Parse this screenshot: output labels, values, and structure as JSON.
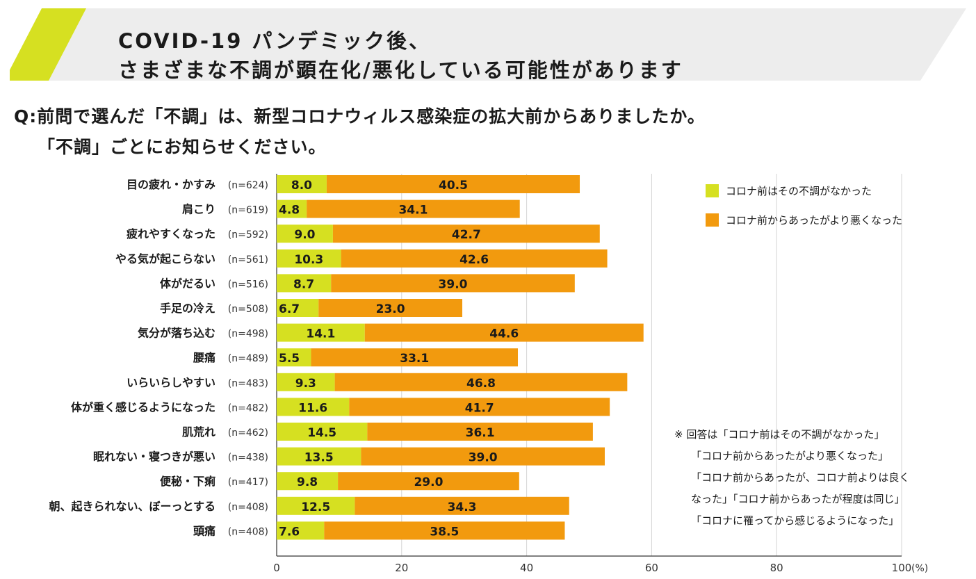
{
  "banner": {
    "title_line1": "COVID-19 パンデミック後、",
    "title_line2": "さまざまな不調が顕在化/悪化している可能性があります",
    "accent_color": "#d6e021",
    "background_color": "#ededed"
  },
  "question": {
    "line1": "Q:前問で選んだ「不調」は、新型コロナウィルス感染症の拡大前からありましたか。",
    "line2": "「不調」ごとにお知らせください。"
  },
  "legend": {
    "items": [
      {
        "label": "コロナ前はその不調がなかった",
        "color": "#d6e021"
      },
      {
        "label": "コロナ前からあったがより悪くなった",
        "color": "#f29a0e"
      }
    ]
  },
  "note": {
    "lines": [
      "※ 回答は「コロナ前はその不調がなかった」",
      "「コロナ前からあったがより悪くなった」",
      "「コロナ前からあったが、コロナ前よりは良く",
      "なった」「コロナ前からあったが程度は同じ」",
      "「コロナに罹ってから感じるようになった」"
    ]
  },
  "chart_data": {
    "type": "bar",
    "orientation": "horizontal",
    "stacked": true,
    "categories": [
      "目の疲れ・かすみ",
      "肩こり",
      "疲れやすくなった",
      "やる気が起こらない",
      "体がだるい",
      "手足の冷え",
      "気分が落ち込む",
      "腰痛",
      "いらいらしやすい",
      "体が重く感じるようになった",
      "肌荒れ",
      "眠れない・寝つきが悪い",
      "便秘・下痢",
      "朝、起きられない、ぼーっとする",
      "頭痛"
    ],
    "sample_sizes": [
      "(n=624)",
      "(n=619)",
      "(n=592)",
      "(n=561)",
      "(n=516)",
      "(n=508)",
      "(n=498)",
      "(n=489)",
      "(n=483)",
      "(n=482)",
      "(n=462)",
      "(n=438)",
      "(n=417)",
      "(n=408)",
      "(n=408)"
    ],
    "series": [
      {
        "name": "コロナ前はその不調がなかった",
        "color": "#d6e021",
        "values": [
          8.0,
          4.8,
          9.0,
          10.3,
          8.7,
          6.7,
          14.1,
          5.5,
          9.3,
          11.6,
          14.5,
          13.5,
          9.8,
          12.5,
          7.6
        ]
      },
      {
        "name": "コロナ前からあったがより悪くなった",
        "color": "#f29a0e",
        "values": [
          40.5,
          34.1,
          42.7,
          42.6,
          39.0,
          23.0,
          44.6,
          33.1,
          46.8,
          41.7,
          36.1,
          39.0,
          29.0,
          34.3,
          38.5
        ]
      }
    ],
    "xlim": [
      0,
      100
    ],
    "xticks": [
      0,
      20,
      40,
      60,
      80,
      100
    ],
    "xticklabels": [
      "0",
      "20",
      "40",
      "60",
      "80",
      "100"
    ],
    "xunit": "(%)",
    "grid": true
  }
}
